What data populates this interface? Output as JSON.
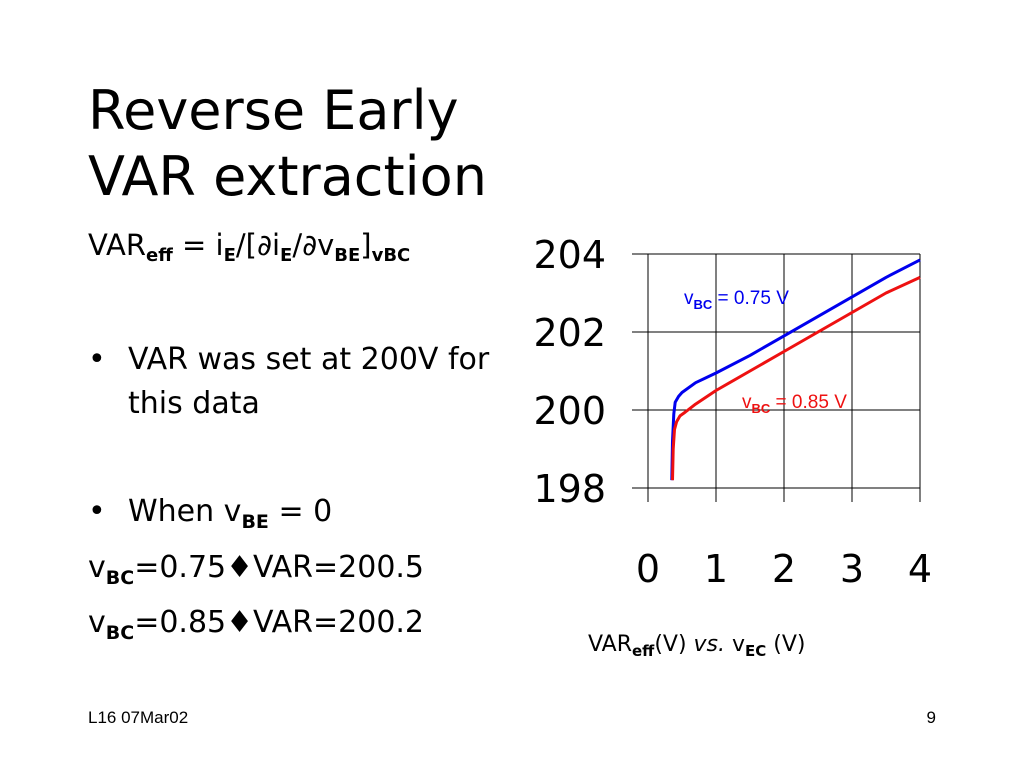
{
  "slide": {
    "title_line1": "Reverse Early",
    "title_line2": "VAR extraction",
    "formula": {
      "part1": "VAR",
      "sub1": "eff",
      "part2": " = i",
      "sub2": "E",
      "part3": "/[∂i",
      "sub3": "E",
      "part4": "/∂v",
      "sub4": "BE",
      "part5": "]",
      "sub5": "vBC"
    },
    "bullet_symbol": "•",
    "bullet1": "VAR was set at 200V for this data",
    "bullet2": {
      "prefix": "When v",
      "sub": "BE",
      "suffix": " = 0"
    },
    "results": [
      {
        "prefix": "v",
        "sub": "BC",
        "suffix": "=0.75♦VAR=200.5"
      },
      {
        "prefix": "v",
        "sub": "BC",
        "suffix": "=0.85♦VAR=200.2"
      }
    ],
    "footer_left": "L16 07Mar02",
    "footer_right": "9",
    "caption": {
      "part1": "VAR",
      "sub1": "eff",
      "part2": "(V) ",
      "vs": "vs.",
      "part3": " v",
      "sub2": "EC",
      "part4": " (V)"
    }
  },
  "chart_data": {
    "type": "line",
    "xlim": [
      0,
      4
    ],
    "ylim": [
      198,
      204
    ],
    "x_ticks": [
      "0",
      "1",
      "2",
      "3",
      "4"
    ],
    "y_ticks": [
      "204",
      "202",
      "200",
      "198"
    ],
    "grid": true,
    "series": [
      {
        "name_prefix": "v",
        "name_sub": "BC",
        "name_suffix": " = 0.75 V",
        "color": "#0000ee",
        "x": [
          0.35,
          0.36,
          0.38,
          0.4,
          0.45,
          0.5,
          0.7,
          1.0,
          1.5,
          2.0,
          2.5,
          3.0,
          3.5,
          4.0
        ],
        "y": [
          198.2,
          199.2,
          199.9,
          200.2,
          200.35,
          200.45,
          200.7,
          200.95,
          201.4,
          201.9,
          202.4,
          202.9,
          203.4,
          203.85
        ]
      },
      {
        "name_prefix": "v",
        "name_sub": "BC",
        "name_suffix": " = 0.85 V",
        "color": "#ee1111",
        "x": [
          0.36,
          0.37,
          0.39,
          0.42,
          0.47,
          0.55,
          0.7,
          1.0,
          1.5,
          2.0,
          2.5,
          3.0,
          3.5,
          4.0
        ],
        "y": [
          198.2,
          199.0,
          199.5,
          199.7,
          199.85,
          199.95,
          200.15,
          200.5,
          201.0,
          201.5,
          202.0,
          202.5,
          203.0,
          203.4
        ]
      }
    ],
    "caption": "VAReff(V) vs. vEC (V)"
  }
}
